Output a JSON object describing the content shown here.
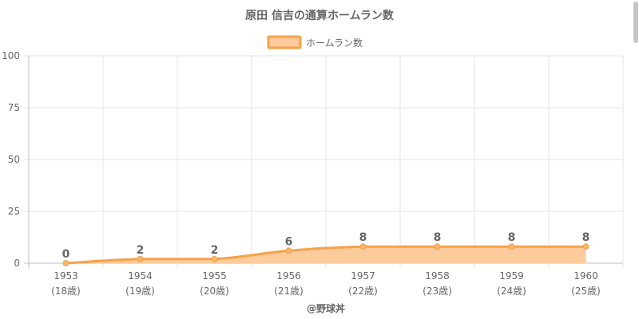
{
  "colors": {
    "line": "#f7a14a",
    "fill": "#fdcb9c",
    "point": "#f7b56f",
    "text": "#666666",
    "grid": "#e5e5e5"
  },
  "chart_data": {
    "type": "area",
    "title": "原田 信吉の通算ホームラン数",
    "categories": [
      "1953",
      "1954",
      "1955",
      "1956",
      "1957",
      "1958",
      "1959",
      "1960"
    ],
    "category_sublabels": [
      "(18歳)",
      "(19歳)",
      "(20歳)",
      "(21歳)",
      "(22歳)",
      "(23歳)",
      "(24歳)",
      "(25歳)"
    ],
    "series": [
      {
        "name": "ホームラン数",
        "values": [
          0,
          2,
          2,
          6,
          8,
          8,
          8,
          8
        ]
      }
    ],
    "ylim": [
      0,
      100
    ],
    "yticks": [
      0,
      25,
      50,
      75,
      100
    ],
    "grid": true,
    "legend": "top-center",
    "source": "@野球丼"
  }
}
